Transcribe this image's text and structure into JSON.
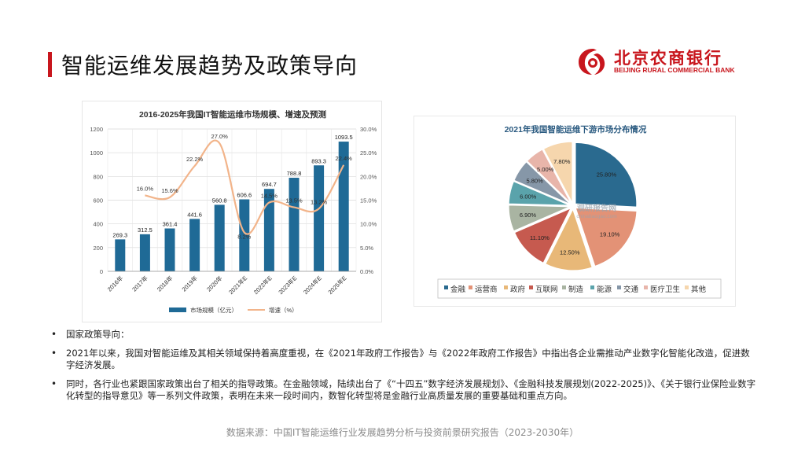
{
  "slide": {
    "title": "智能运维发展趋势及政策导向",
    "accent_color": "#c8161d"
  },
  "logo": {
    "name_cn": "北京农商银行",
    "name_en": "BEIJING RURAL COMMERCIAL BANK",
    "icon": "bank-logo-icon"
  },
  "chart_data": [
    {
      "type": "bar",
      "title": "2016-2025年我国IT智能运维市场规模、增速及预测",
      "categories": [
        "2016年",
        "2017年",
        "2018年",
        "2019年",
        "2020年",
        "2021年E",
        "2022年E",
        "2023年E",
        "2024年E",
        "2025年E"
      ],
      "series": [
        {
          "name": "市场规模（亿元）",
          "type": "bar",
          "axis": "left",
          "color": "#1f6a96",
          "values": [
            269.3,
            312.5,
            361.4,
            441.6,
            560.8,
            606.6,
            694.7,
            788.8,
            893.3,
            1093.5
          ]
        },
        {
          "name": "增速（%）",
          "type": "line",
          "axis": "right",
          "color": "#f2b48a",
          "values": [
            null,
            16.0,
            15.6,
            22.2,
            27.0,
            8.2,
            14.5,
            13.5,
            13.2,
            22.4
          ]
        }
      ],
      "bar_labels": [
        "269.3",
        "312.5",
        "361.4",
        "441.6",
        "560.8",
        "606.6",
        "694.7",
        "788.8",
        "893.3",
        "1093.5"
      ],
      "line_labels": [
        "",
        "16.0%",
        "15.6%",
        "22.2%",
        "27.0%",
        "8.2%",
        "14.5%",
        "13.5%",
        "13.2%",
        "22.4%"
      ],
      "ylim_left": [
        0,
        1200
      ],
      "yticks_left": [
        "0",
        "200",
        "400",
        "600",
        "800",
        "1000",
        "1200"
      ],
      "ylim_right": [
        0,
        30
      ],
      "yticks_right": [
        "0.0%",
        "5.0%",
        "10.0%",
        "15.0%",
        "20.0%",
        "25.0%",
        "30.0%"
      ],
      "grid": true,
      "legend": "bottom"
    },
    {
      "type": "pie",
      "title": "2021年我国智能运维下游市场分布情况",
      "labels": [
        "金融",
        "运营商",
        "政府",
        "互联网",
        "制造",
        "能源",
        "交通",
        "医疗卫生",
        "其他"
      ],
      "values": [
        25.8,
        19.1,
        12.5,
        11.1,
        6.9,
        6.0,
        5.8,
        5.0,
        7.8
      ],
      "value_labels": [
        "25.80%",
        "19.10%",
        "12.50%",
        "11.10%",
        "6.90%",
        "6.00%",
        "5.80%",
        "5.00%",
        "7.80%"
      ],
      "colors": [
        "#2a6a8f",
        "#e39276",
        "#e8b878",
        "#c65a4f",
        "#a9b4a2",
        "#5aa3ab",
        "#8697a8",
        "#e8b5aa",
        "#f6d6ad"
      ],
      "legend": "bottom",
      "watermark": [
        "观研报告网",
        "chinabaogao.com"
      ]
    }
  ],
  "bullets": [
    "国家政策导向：",
    "2021年以来，我国对智能运维及其相关领域保持着高度重视，在《2021年政府工作报告》与《2022年政府工作报告》中指出各企业需推动产业数字化智能化改造，促进数字经济发展。",
    "同时，各行业也紧跟国家政策出台了相关的指导政策。在金融领域，陆续出台了《“十四五”数字经济发展规划》、《金融科技发展规划(2022-2025)》、《关于银行业保险业数字化转型的指导意见》等一系列文件政策，表明在未来一段时间内，数智化转型将是金融行业高质量发展的重要基础和重点方向。"
  ],
  "footer": {
    "source": "数据来源：中国IT智能运维行业发展趋势分析与投资前景研究报告（2023-2030年）"
  }
}
